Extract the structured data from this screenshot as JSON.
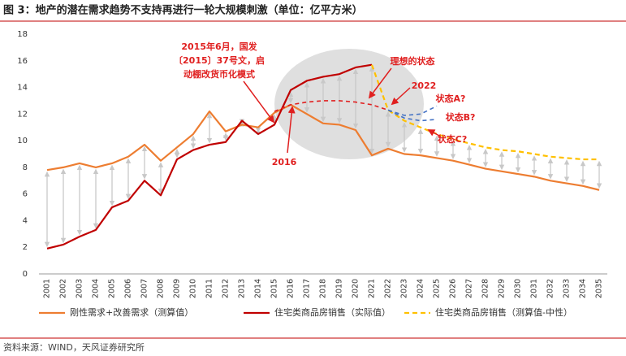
{
  "chart_data": {
    "type": "line",
    "title": "图 3：地产的潜在需求趋势不支持再进行一轮大规模刺激（单位：亿平方米）",
    "source": "资料来源：WIND，天风证券研究所",
    "categories": [
      "2001",
      "2002",
      "2003",
      "2004",
      "2005",
      "2006",
      "2007",
      "2008",
      "2009",
      "2010",
      "2011",
      "2012",
      "2013",
      "2014",
      "2015",
      "2016",
      "2017",
      "2018",
      "2019",
      "2020",
      "2021",
      "2022",
      "2023",
      "2024",
      "2025",
      "2026",
      "2027",
      "2028",
      "2029",
      "2030",
      "2031",
      "2032",
      "2033",
      "2034",
      "2035"
    ],
    "ylim": [
      0,
      18
    ],
    "yticks": [
      0,
      2,
      4,
      6,
      8,
      10,
      12,
      14,
      16,
      18
    ],
    "series": [
      {
        "name": "刚性需求+改善需求（测算值）",
        "color": "#ed7d31",
        "dash": false,
        "values": [
          7.8,
          8.0,
          8.3,
          8.0,
          8.3,
          8.8,
          9.7,
          8.5,
          9.5,
          10.5,
          12.2,
          10.7,
          11.2,
          11.0,
          12.1,
          12.7,
          12.0,
          11.3,
          11.2,
          10.8,
          8.9,
          9.4,
          9.0,
          8.9,
          8.7,
          8.5,
          8.2,
          7.9,
          7.7,
          7.5,
          7.3,
          7.0,
          6.8,
          6.6,
          6.3
        ]
      },
      {
        "name": "住宅类商品房销售（实际值）",
        "color": "#c00000",
        "dash": false,
        "values": [
          1.9,
          2.2,
          2.8,
          3.3,
          5.0,
          5.5,
          7.0,
          5.9,
          8.6,
          9.3,
          9.7,
          9.9,
          11.5,
          10.5,
          11.2,
          13.8,
          14.5,
          14.8,
          15.0,
          15.5,
          15.7,
          null,
          null,
          null,
          null,
          null,
          null,
          null,
          null,
          null,
          null,
          null,
          null,
          null,
          null
        ]
      },
      {
        "name": "住宅类商品房销售（测算值-中性）",
        "color": "#ffc000",
        "dash": true,
        "values": [
          null,
          null,
          null,
          null,
          null,
          null,
          null,
          null,
          null,
          null,
          null,
          null,
          null,
          null,
          null,
          null,
          null,
          null,
          null,
          null,
          15.7,
          12.3,
          11.5,
          11.0,
          10.5,
          10.1,
          9.8,
          9.5,
          9.3,
          9.2,
          9.0,
          8.8,
          8.7,
          8.6,
          8.6
        ]
      }
    ],
    "annotation_lines": [
      {
        "label": "理想的状态",
        "color": "#e02020",
        "values": [
          null,
          null,
          null,
          null,
          null,
          null,
          null,
          null,
          null,
          null,
          null,
          null,
          null,
          null,
          12.2,
          12.7,
          12.9,
          13.0,
          13.0,
          12.9,
          12.7,
          12.3,
          null,
          null,
          null,
          null,
          null,
          null,
          null,
          null,
          null,
          null,
          null,
          null,
          null
        ]
      },
      {
        "label": "状态A?",
        "color": "#4472c4",
        "values": [
          null,
          null,
          null,
          null,
          null,
          null,
          null,
          null,
          null,
          null,
          null,
          null,
          null,
          null,
          null,
          null,
          null,
          null,
          null,
          null,
          null,
          12.3,
          11.9,
          12.0,
          12.6,
          null,
          null,
          null,
          null,
          null,
          null,
          null,
          null,
          null,
          null
        ]
      },
      {
        "label": "状态B?",
        "color": "#4472c4",
        "values": [
          null,
          null,
          null,
          null,
          null,
          null,
          null,
          null,
          null,
          null,
          null,
          null,
          null,
          null,
          null,
          null,
          null,
          null,
          null,
          null,
          null,
          12.3,
          11.7,
          11.5,
          11.6,
          null,
          null,
          null,
          null,
          null,
          null,
          null,
          null,
          null,
          null
        ]
      }
    ],
    "annotations": {
      "policy": [
        "2015年6月，国发",
        "〔2015〕37号文，启",
        "动棚改货币化模式"
      ],
      "y2016": "2016",
      "y2022": "2022",
      "state_c": "状态C?"
    }
  }
}
